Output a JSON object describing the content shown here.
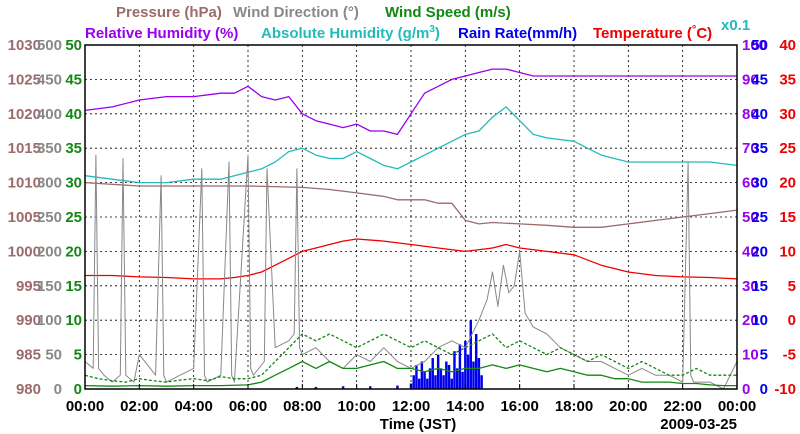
{
  "chart_data": {
    "type": "line",
    "date": "2009-03-25",
    "xlabel": "Time (JST)",
    "x_ticks": [
      "00:00",
      "02:00",
      "04:00",
      "06:00",
      "08:00",
      "10:00",
      "12:00",
      "14:00",
      "16:00",
      "18:00",
      "20:00",
      "22:00",
      "00:00"
    ],
    "x_range_hours": [
      0,
      24
    ],
    "legend": [
      {
        "id": "pressure",
        "label": "Pressure (hPa)",
        "color": "#9c6b6b"
      },
      {
        "id": "wind_dir",
        "label": "Wind Direction (°)",
        "color": "#888888"
      },
      {
        "id": "wind_speed",
        "label": "Wind Speed (m/s)",
        "color": "#118811"
      },
      {
        "id": "rh",
        "label": "Relative Humidity (%)",
        "color": "#9900ee"
      },
      {
        "id": "ah_pre",
        "label": "Absolute Humidity (g/m",
        "sup": "3",
        "ah_post": ")",
        "color": "#22bbbb"
      },
      {
        "id": "rain",
        "label": "Rain Rate(mm/h)",
        "color": "#0000ee"
      },
      {
        "id": "temp_pre",
        "label": "Temperature (",
        "deg": "°",
        "temp_post": "C)",
        "color": "#ee0000"
      },
      {
        "id": "x01",
        "label": "x0.1",
        "color": "#22bbbb"
      }
    ],
    "axes": {
      "pressure": {
        "ticks": [
          "1030",
          "1025",
          "1020",
          "1015",
          "1010",
          "1005",
          "1000",
          "995",
          "990",
          "985",
          "980"
        ],
        "range": [
          980,
          1030
        ],
        "color": "#9c6b6b"
      },
      "wind_dir": {
        "ticks": [
          "500",
          "450",
          "400",
          "350",
          "300",
          "250",
          "200",
          "150",
          "100",
          "50",
          "0"
        ],
        "range": [
          0,
          500
        ],
        "color": "#888888"
      },
      "wind_speed": {
        "ticks": [
          "50",
          "45",
          "40",
          "35",
          "30",
          "25",
          "20",
          "15",
          "10",
          "5",
          "0"
        ],
        "range": [
          0,
          50
        ],
        "color": "#118811"
      },
      "rh": {
        "ticks": [
          "100",
          "90",
          "80",
          "70",
          "60",
          "50",
          "40",
          "30",
          "20",
          "10",
          "0"
        ],
        "range": [
          0,
          100
        ],
        "color": "#9900ee"
      },
      "rain": {
        "ticks": [
          "50",
          "45",
          "40",
          "35",
          "30",
          "25",
          "20",
          "15",
          "10",
          "5",
          "0"
        ],
        "range": [
          0,
          50
        ],
        "color": "#0000ee"
      },
      "temp": {
        "ticks": [
          "40",
          "35",
          "30",
          "25",
          "20",
          "15",
          "10",
          "5",
          "0",
          "-5",
          "-10"
        ],
        "range": [
          -10,
          40
        ],
        "color": "#ee0000"
      }
    },
    "series": [
      {
        "name": "Relative Humidity (%)",
        "axis": "rh",
        "color": "#9900ee",
        "x": [
          0,
          1,
          2,
          3,
          4,
          5,
          5.5,
          6,
          6.5,
          7,
          7.5,
          8,
          8.5,
          9,
          9.5,
          10,
          10.5,
          11,
          11.5,
          12,
          12.5,
          13,
          13.5,
          14,
          14.5,
          15,
          15.5,
          16,
          16.5,
          17,
          18,
          20,
          22,
          24
        ],
        "y": [
          81,
          82,
          84,
          85,
          85,
          86,
          86,
          88,
          85,
          84,
          85,
          80,
          78,
          77,
          76,
          77,
          75,
          75,
          74,
          80,
          86,
          88,
          90,
          91,
          92,
          93,
          93,
          92,
          91,
          91,
          91,
          91,
          91,
          91
        ]
      },
      {
        "name": "Absolute Humidity (g/m3) x0.1",
        "axis": "rh",
        "color": "#22bbbb",
        "x": [
          0,
          1,
          2,
          3,
          4,
          5,
          6,
          6.5,
          7,
          7.5,
          8,
          8.5,
          9,
          9.5,
          10,
          10.5,
          11,
          11.5,
          12,
          12.5,
          13,
          13.5,
          14,
          14.5,
          15,
          15.5,
          16,
          16.5,
          17,
          18,
          19,
          20,
          21,
          22,
          23,
          24
        ],
        "y": [
          62,
          61,
          60,
          60,
          61,
          61,
          63,
          64,
          66,
          69,
          70,
          68,
          67,
          67,
          69,
          67,
          65,
          64,
          66,
          68,
          70,
          72,
          74,
          75,
          79,
          82,
          78,
          74,
          73,
          72,
          68,
          66,
          66,
          66,
          66,
          65
        ]
      },
      {
        "name": "Pressure (hPa)",
        "axis": "pressure",
        "color": "#9c6b6b",
        "x": [
          0,
          2,
          4,
          6,
          8,
          9,
          10,
          11,
          11.5,
          12,
          12.5,
          13,
          13.5,
          14,
          14.5,
          15,
          16,
          17,
          18,
          19,
          20,
          21,
          22,
          23,
          24
        ],
        "y": [
          1010,
          1009.5,
          1009.5,
          1009.5,
          1009.3,
          1009,
          1008.5,
          1008,
          1007.5,
          1007.5,
          1007.5,
          1007,
          1007,
          1004.5,
          1004,
          1004.2,
          1004,
          1003.8,
          1003.5,
          1003.5,
          1004,
          1004.5,
          1005,
          1005.5,
          1006
        ]
      },
      {
        "name": "Temperature (°C)",
        "axis": "temp",
        "color": "#ee0000",
        "x": [
          0,
          1,
          2,
          3,
          4,
          5,
          5.5,
          6,
          6.5,
          7,
          7.5,
          8,
          8.5,
          9,
          9.5,
          10,
          11,
          12,
          13,
          14,
          15,
          15.5,
          16,
          17,
          18,
          19,
          20,
          21,
          22,
          23,
          24
        ],
        "y": [
          6.5,
          6.5,
          6.3,
          6.2,
          6,
          6,
          6.2,
          6.5,
          7,
          8,
          9,
          10,
          10.5,
          11,
          11.5,
          11.8,
          11.5,
          11,
          10.5,
          10,
          10.5,
          11,
          10.5,
          10,
          9.5,
          8,
          7,
          6.5,
          6.3,
          6.2,
          6
        ]
      },
      {
        "name": "Wind Direction (°)",
        "axis": "wind_dir",
        "color": "#888888",
        "x": [
          0,
          0.3,
          0.4,
          0.5,
          0.7,
          1,
          1.3,
          1.4,
          1.5,
          1.8,
          2,
          2.6,
          2.8,
          2.9,
          3,
          3.5,
          4,
          4.3,
          4.4,
          4.5,
          5,
          5.3,
          5.4,
          5.5,
          6,
          6.1,
          6.2,
          6.6,
          6.7,
          7,
          7.5,
          7.7,
          7.8,
          7.9,
          8,
          8.5,
          9,
          9.5,
          10,
          10.5,
          11,
          11.5,
          12,
          12.5,
          13,
          13.5,
          14,
          14.5,
          14.8,
          15,
          15.2,
          15.4,
          15.6,
          15.8,
          16,
          16.2,
          16.5,
          17,
          17.5,
          18,
          18.5,
          19,
          19.5,
          20,
          20.5,
          21,
          21.5,
          22,
          22.2,
          22.3,
          22.4,
          23,
          23.5,
          24
        ],
        "y": [
          40,
          30,
          340,
          30,
          20,
          10,
          20,
          335,
          20,
          10,
          50,
          20,
          310,
          20,
          10,
          20,
          30,
          320,
          20,
          10,
          20,
          330,
          20,
          10,
          340,
          30,
          20,
          40,
          320,
          60,
          70,
          80,
          320,
          60,
          50,
          60,
          40,
          30,
          50,
          40,
          60,
          40,
          30,
          40,
          60,
          70,
          60,
          100,
          130,
          170,
          120,
          180,
          140,
          150,
          200,
          110,
          90,
          80,
          60,
          50,
          40,
          40,
          30,
          20,
          30,
          20,
          20,
          10,
          330,
          20,
          10,
          10,
          0,
          40
        ]
      },
      {
        "name": "Wind Speed (m/s) max",
        "axis": "wind_speed",
        "color": "#118811",
        "dashed": true,
        "x": [
          0,
          0.5,
          1,
          1.5,
          2,
          2.5,
          3,
          3.5,
          4,
          4.5,
          5,
          5.5,
          6,
          6.5,
          7,
          7.5,
          8,
          8.5,
          9,
          9.5,
          10,
          10.5,
          11,
          11.5,
          12,
          12.5,
          13,
          13.5,
          14,
          14.5,
          15,
          15.5,
          16,
          16.5,
          17,
          17.5,
          18,
          18.5,
          19,
          19.5,
          20,
          20.5,
          21,
          21.5,
          22,
          22.5,
          23,
          23.5,
          24
        ],
        "y": [
          2,
          1.5,
          1.2,
          1,
          1.5,
          1.2,
          1,
          1.3,
          1.5,
          1.2,
          1.8,
          1.5,
          1.5,
          2,
          4,
          6,
          8,
          7,
          8,
          7,
          6,
          7,
          8,
          7,
          6,
          7,
          6,
          5,
          6,
          7,
          8,
          6,
          7,
          6,
          5,
          6,
          5,
          4,
          5,
          4,
          3,
          4,
          3,
          2,
          2,
          3,
          2,
          2,
          2
        ]
      },
      {
        "name": "Wind Speed (m/s)",
        "axis": "wind_speed",
        "color": "#118811",
        "x": [
          0,
          1,
          2,
          3,
          4,
          5,
          6,
          6.5,
          7,
          7.5,
          8,
          8.5,
          9,
          9.5,
          10,
          10.5,
          11,
          11.5,
          12,
          12.5,
          13,
          13.5,
          14,
          14.5,
          15,
          15.5,
          16,
          16.5,
          17,
          17.5,
          18,
          18.5,
          19,
          19.5,
          20,
          20.5,
          21,
          21.5,
          22,
          22.5,
          23,
          23.5,
          24
        ],
        "y": [
          0.5,
          0.4,
          0.5,
          0.4,
          0.5,
          0.5,
          0.6,
          1,
          2,
          3,
          4,
          3,
          4,
          3,
          3,
          3.5,
          4,
          3,
          3,
          2.5,
          3,
          2.5,
          3,
          3,
          3.5,
          3,
          3.5,
          3,
          2.5,
          3,
          2.5,
          2,
          2,
          1.5,
          1.5,
          1,
          1,
          1,
          0.8,
          0.8,
          0.6,
          0.5,
          0.5
        ]
      },
      {
        "name": "Rain Rate (mm/h)",
        "axis": "rain",
        "color": "#0000ee",
        "kind": "bars",
        "x": [
          7.8,
          8.5,
          9.5,
          10.5,
          11.5,
          12.0,
          12.1,
          12.2,
          12.3,
          12.4,
          12.5,
          12.6,
          12.7,
          12.8,
          12.9,
          13.0,
          13.1,
          13.2,
          13.3,
          13.4,
          13.5,
          13.6,
          13.7,
          13.8,
          13.9,
          14.0,
          14.1,
          14.2,
          14.3,
          14.4,
          14.5,
          14.6
        ],
        "y": [
          0.3,
          0.3,
          0.4,
          0.4,
          0.5,
          0.8,
          2,
          3.5,
          1.5,
          4,
          2.5,
          1.5,
          3,
          4.5,
          2,
          5,
          3,
          2,
          4,
          3.5,
          1.5,
          5.5,
          3,
          6.5,
          2.5,
          7,
          5,
          10,
          4,
          8,
          4.5,
          2
        ]
      }
    ]
  }
}
